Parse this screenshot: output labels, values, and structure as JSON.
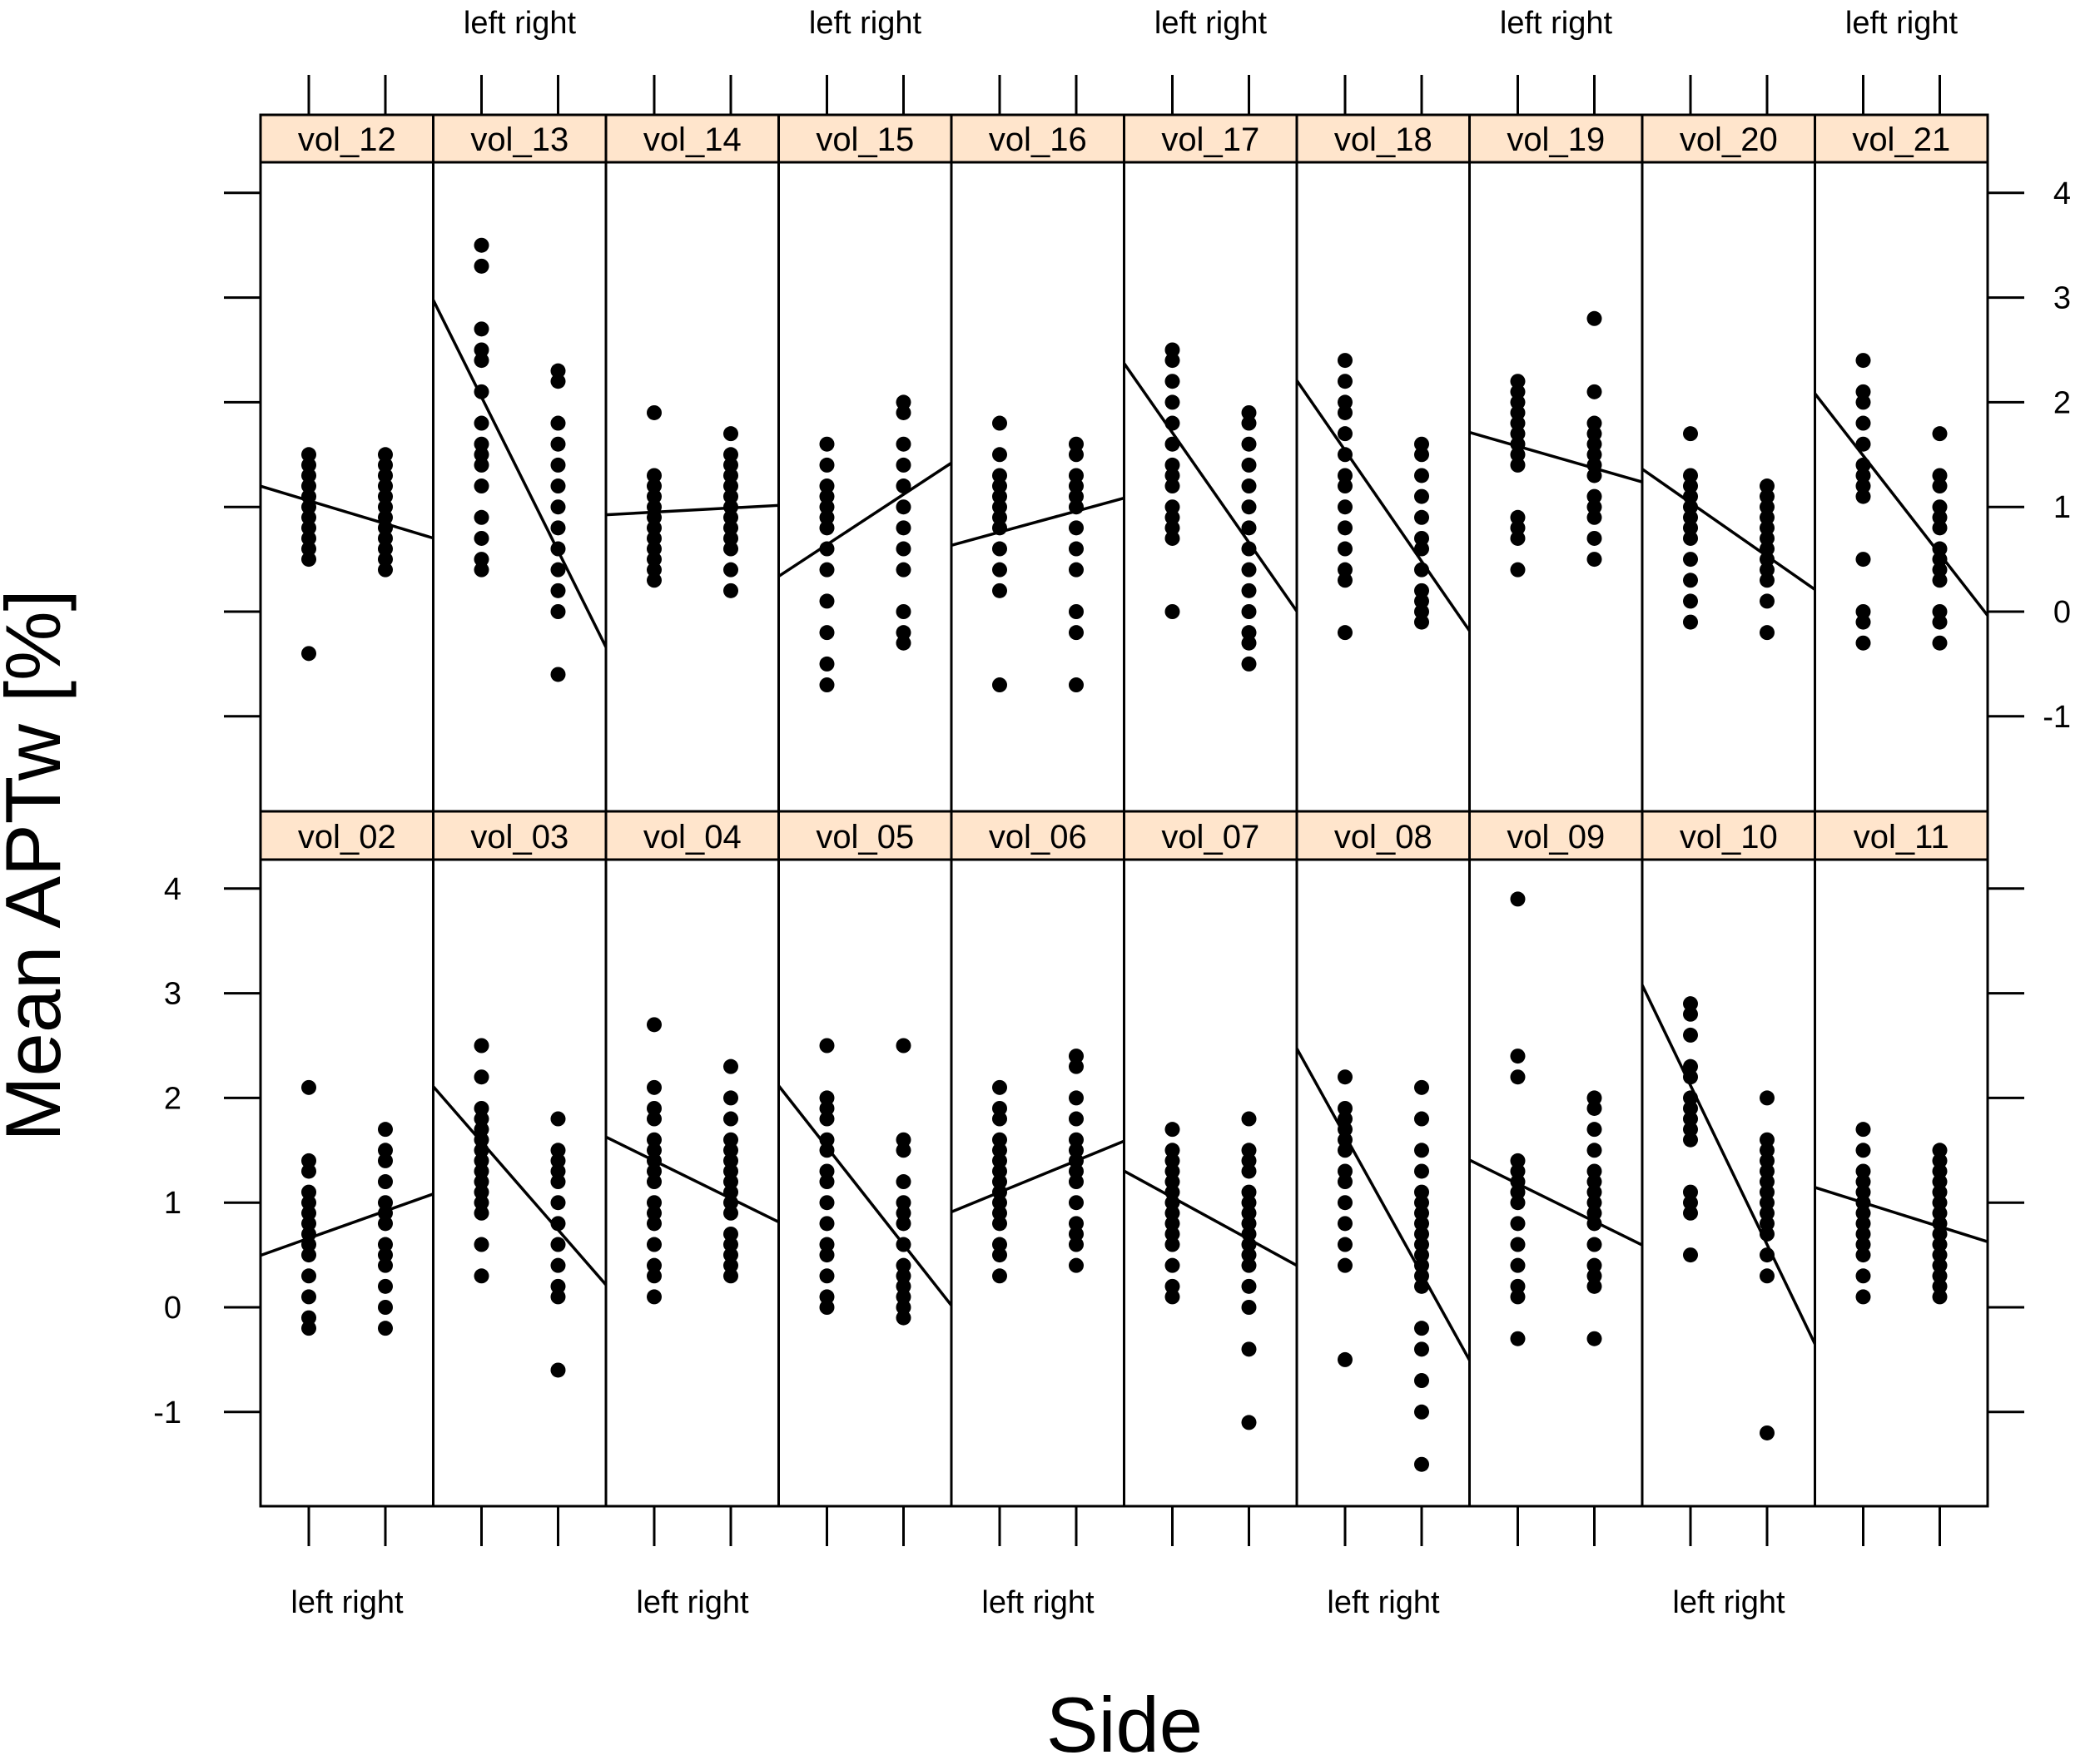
{
  "chart_data": {
    "type": "scatter",
    "ylabel": "Mean APTw [%]",
    "xlabel": "Side",
    "x_categories": [
      "left",
      "right"
    ],
    "ylim": [
      -1.8,
      4.3
    ],
    "y_ticks": [
      -1,
      0,
      1,
      2,
      3,
      4
    ],
    "strip_color": "#ffe5cc",
    "point_color": "#000000",
    "layout": "2 rows x 10 panels (lattice)",
    "panels": [
      {
        "name": "vol_12",
        "left": [
          1.5,
          1.4,
          1.3,
          1.2,
          1.1,
          1.0,
          0.9,
          0.8,
          0.7,
          0.6,
          0.5,
          -0.4
        ],
        "right": [
          1.5,
          1.4,
          1.3,
          1.2,
          1.1,
          1.0,
          0.9,
          0.8,
          0.7,
          0.6,
          0.5,
          0.4
        ],
        "fit": [
          1.06,
          0.84
        ]
      },
      {
        "name": "vol_13",
        "left": [
          3.5,
          3.3,
          2.7,
          2.5,
          2.4,
          2.1,
          1.8,
          1.6,
          1.5,
          1.4,
          1.2,
          0.9,
          0.7,
          0.5,
          0.4
        ],
        "right": [
          2.3,
          2.2,
          1.8,
          1.6,
          1.4,
          1.2,
          1.0,
          0.8,
          0.6,
          0.4,
          0.2,
          0.0,
          -0.6
        ],
        "fit": [
          2.05,
          0.58
        ]
      },
      {
        "name": "vol_14",
        "left": [
          1.9,
          1.3,
          1.2,
          1.1,
          1.0,
          0.9,
          0.8,
          0.7,
          0.6,
          0.5,
          0.4,
          0.3
        ],
        "right": [
          1.7,
          1.5,
          1.4,
          1.3,
          1.2,
          1.1,
          1.0,
          0.9,
          0.8,
          0.7,
          0.6,
          0.4,
          0.2
        ],
        "fit": [
          0.95,
          0.99
        ]
      },
      {
        "name": "vol_15",
        "left": [
          1.6,
          1.4,
          1.2,
          1.1,
          1.0,
          0.9,
          0.8,
          0.6,
          0.4,
          0.1,
          -0.2,
          -0.5,
          -0.7
        ],
        "right": [
          2.0,
          1.9,
          1.6,
          1.4,
          1.2,
          1.0,
          0.8,
          0.6,
          0.4,
          0.0,
          -0.2,
          -0.3
        ],
        "fit": [
          0.64,
          1.12
        ]
      },
      {
        "name": "vol_16",
        "left": [
          1.8,
          1.5,
          1.3,
          1.2,
          1.1,
          1.0,
          0.9,
          0.8,
          0.6,
          0.4,
          0.2,
          -0.7
        ],
        "right": [
          1.6,
          1.5,
          1.3,
          1.2,
          1.1,
          1.0,
          0.8,
          0.6,
          0.4,
          0.0,
          -0.2,
          -0.7
        ],
        "fit": [
          0.76,
          0.96
        ]
      },
      {
        "name": "vol_17",
        "left": [
          2.5,
          2.4,
          2.2,
          2.0,
          1.8,
          1.6,
          1.4,
          1.3,
          1.2,
          1.0,
          0.9,
          0.8,
          0.7,
          0.0
        ],
        "right": [
          1.9,
          1.8,
          1.6,
          1.4,
          1.2,
          1.0,
          0.8,
          0.6,
          0.4,
          0.2,
          0.0,
          -0.2,
          -0.3,
          -0.5
        ],
        "fit": [
          1.71,
          0.66
        ]
      },
      {
        "name": "vol_18",
        "left": [
          2.4,
          2.2,
          2.0,
          1.9,
          1.7,
          1.5,
          1.3,
          1.2,
          1.0,
          0.8,
          0.6,
          0.4,
          0.3,
          -0.2
        ],
        "right": [
          1.6,
          1.5,
          1.3,
          1.1,
          0.9,
          0.7,
          0.6,
          0.4,
          0.2,
          0.1,
          0.0,
          -0.1
        ],
        "fit": [
          1.54,
          0.48
        ]
      },
      {
        "name": "vol_19",
        "left": [
          2.2,
          2.1,
          2.0,
          1.9,
          1.8,
          1.7,
          1.6,
          1.5,
          1.4,
          0.9,
          0.8,
          0.7,
          0.4
        ],
        "right": [
          2.8,
          2.1,
          1.8,
          1.7,
          1.6,
          1.5,
          1.4,
          1.3,
          1.1,
          1.0,
          0.9,
          0.7,
          0.5
        ],
        "fit": [
          1.58,
          1.37
        ]
      },
      {
        "name": "vol_20",
        "left": [
          1.7,
          1.3,
          1.2,
          1.1,
          1.0,
          0.9,
          0.8,
          0.7,
          0.5,
          0.3,
          0.1,
          -0.1
        ],
        "right": [
          1.2,
          1.1,
          1.0,
          0.9,
          0.8,
          0.7,
          0.6,
          0.5,
          0.4,
          0.3,
          0.1,
          -0.2
        ],
        "fit": [
          1.04,
          0.53
        ]
      },
      {
        "name": "vol_21",
        "left": [
          2.4,
          2.1,
          2.0,
          1.8,
          1.6,
          1.4,
          1.3,
          1.2,
          1.1,
          0.5,
          0.0,
          -0.1,
          -0.3
        ],
        "right": [
          1.7,
          1.3,
          1.2,
          1.0,
          0.9,
          0.8,
          0.6,
          0.5,
          0.4,
          0.3,
          0.0,
          -0.1,
          -0.3
        ],
        "fit": [
          1.49,
          0.55
        ]
      },
      {
        "name": "vol_02",
        "left": [
          2.1,
          1.4,
          1.3,
          1.1,
          1.0,
          0.9,
          0.8,
          0.7,
          0.6,
          0.5,
          0.3,
          0.1,
          -0.1,
          -0.2
        ],
        "right": [
          1.7,
          1.5,
          1.4,
          1.2,
          1.0,
          0.9,
          0.8,
          0.6,
          0.5,
          0.4,
          0.2,
          0.0,
          -0.2
        ],
        "fit": [
          0.66,
          0.92
        ]
      },
      {
        "name": "vol_03",
        "left": [
          2.5,
          2.2,
          1.9,
          1.8,
          1.7,
          1.6,
          1.5,
          1.4,
          1.3,
          1.2,
          1.1,
          1.0,
          0.9,
          0.6,
          0.3
        ],
        "right": [
          1.8,
          1.5,
          1.4,
          1.3,
          1.2,
          1.0,
          0.8,
          0.6,
          0.4,
          0.2,
          0.1,
          -0.6
        ],
        "fit": [
          1.58,
          0.74
        ]
      },
      {
        "name": "vol_04",
        "left": [
          2.7,
          2.1,
          1.9,
          1.8,
          1.6,
          1.5,
          1.4,
          1.3,
          1.2,
          1.0,
          0.9,
          0.8,
          0.6,
          0.4,
          0.3,
          0.1
        ],
        "right": [
          2.3,
          2.0,
          1.8,
          1.6,
          1.5,
          1.4,
          1.3,
          1.2,
          1.1,
          1.0,
          0.9,
          0.7,
          0.6,
          0.5,
          0.4,
          0.3
        ],
        "fit": [
          1.4,
          1.04
        ]
      },
      {
        "name": "vol_05",
        "left": [
          2.5,
          2.0,
          1.9,
          1.8,
          1.6,
          1.5,
          1.3,
          1.2,
          1.0,
          0.8,
          0.6,
          0.5,
          0.3,
          0.1,
          0.0
        ],
        "right": [
          2.5,
          1.6,
          1.5,
          1.2,
          1.0,
          0.9,
          0.8,
          0.6,
          0.4,
          0.3,
          0.2,
          0.1,
          0.0,
          -0.1
        ],
        "fit": [
          1.53,
          0.6
        ]
      },
      {
        "name": "vol_06",
        "left": [
          2.1,
          1.9,
          1.8,
          1.6,
          1.5,
          1.4,
          1.3,
          1.2,
          1.1,
          1.0,
          0.9,
          0.8,
          0.6,
          0.5,
          0.3
        ],
        "right": [
          2.4,
          2.3,
          2.0,
          1.8,
          1.6,
          1.5,
          1.4,
          1.3,
          1.2,
          1.0,
          0.8,
          0.7,
          0.6,
          0.4
        ],
        "fit": [
          1.1,
          1.4
        ]
      },
      {
        "name": "vol_07",
        "left": [
          1.7,
          1.5,
          1.4,
          1.3,
          1.2,
          1.1,
          1.0,
          0.9,
          0.8,
          0.7,
          0.6,
          0.4,
          0.2,
          0.1
        ],
        "right": [
          1.8,
          1.5,
          1.4,
          1.3,
          1.1,
          1.0,
          0.9,
          0.8,
          0.7,
          0.6,
          0.5,
          0.4,
          0.2,
          0.0,
          -0.4,
          -1.1
        ],
        "fit": [
          1.05,
          0.65
        ]
      },
      {
        "name": "vol_08",
        "left": [
          2.2,
          1.9,
          1.8,
          1.7,
          1.6,
          1.5,
          1.3,
          1.2,
          1.0,
          0.8,
          0.6,
          0.4,
          -0.5
        ],
        "right": [
          2.1,
          1.8,
          1.5,
          1.3,
          1.1,
          1.0,
          0.9,
          0.8,
          0.7,
          0.6,
          0.5,
          0.4,
          0.3,
          0.2,
          -0.2,
          -0.4,
          -0.7,
          -1.0,
          -1.5
        ],
        "fit": [
          1.64,
          0.32
        ]
      },
      {
        "name": "vol_09",
        "left": [
          3.9,
          2.4,
          2.2,
          1.4,
          1.3,
          1.2,
          1.1,
          1.0,
          0.8,
          0.6,
          0.4,
          0.2,
          0.1,
          -0.3
        ],
        "right": [
          2.0,
          1.9,
          1.7,
          1.5,
          1.3,
          1.2,
          1.1,
          1.0,
          0.9,
          0.8,
          0.6,
          0.4,
          0.3,
          0.2,
          -0.3
        ],
        "fit": [
          1.18,
          0.82
        ]
      },
      {
        "name": "vol_10",
        "left": [
          2.9,
          2.8,
          2.6,
          2.3,
          2.2,
          2.0,
          1.9,
          1.8,
          1.7,
          1.6,
          1.1,
          1.0,
          0.9,
          0.5
        ],
        "right": [
          2.0,
          1.6,
          1.5,
          1.4,
          1.3,
          1.2,
          1.1,
          1.0,
          0.9,
          0.8,
          0.7,
          0.5,
          0.3,
          -1.2
        ],
        "fit": [
          2.12,
          0.6
        ]
      },
      {
        "name": "vol_11",
        "left": [
          1.7,
          1.5,
          1.3,
          1.2,
          1.1,
          1.0,
          0.9,
          0.8,
          0.7,
          0.6,
          0.5,
          0.3,
          0.1
        ],
        "right": [
          1.5,
          1.4,
          1.3,
          1.2,
          1.1,
          1.0,
          0.9,
          0.8,
          0.7,
          0.6,
          0.5,
          0.4,
          0.3,
          0.2,
          0.1
        ],
        "fit": [
          1.0,
          0.77
        ]
      }
    ]
  }
}
